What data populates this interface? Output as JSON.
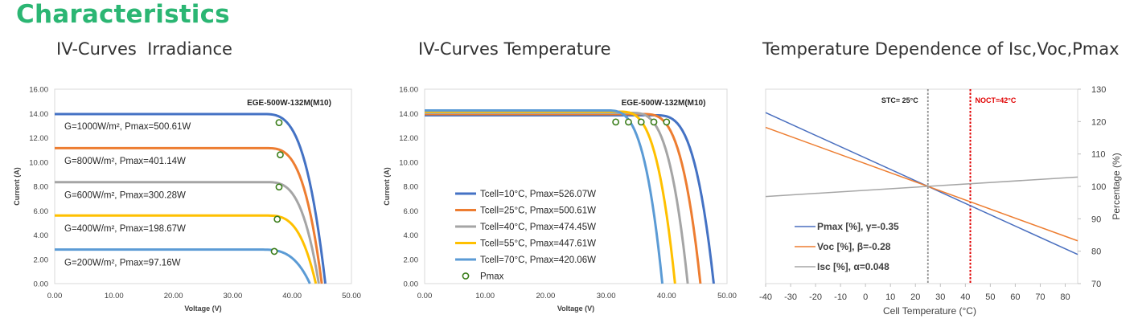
{
  "page": {
    "heading": "Characteristics",
    "subtitles": [
      "IV-Curves  Irradiance",
      "IV-Curves Temperature",
      "Temperature Dependence of Isc,Voc,Pmax"
    ]
  },
  "colors": {
    "heading": "#2bb673",
    "blue": "#4472c4",
    "orange": "#ed7d31",
    "gray": "#a5a5a5",
    "yellow": "#ffc000",
    "lightblue": "#5b9bd5",
    "marker": "#3a7d1a",
    "stc": "#8c8c8c",
    "noct": "#e00000",
    "line_blue": "#4a6fbf",
    "line_orange": "#ed7d31",
    "line_gray": "#a6a6a6"
  },
  "chart_data": [
    {
      "type": "line",
      "model_label": "EGE-500W-132M(M10)",
      "xlabel": "Voltage (V)",
      "ylabel": "Current (A)",
      "xlim": [
        0,
        50
      ],
      "ylim": [
        0,
        16
      ],
      "x_ticks": [
        "0.00",
        "10.00",
        "20.00",
        "30.00",
        "40.00",
        "50.00"
      ],
      "y_ticks": [
        "0.00",
        "2.00",
        "4.00",
        "6.00",
        "8.00",
        "10.00",
        "12.00",
        "14.00",
        "16.00"
      ],
      "series": [
        {
          "name": "G=1000W/m², Pmax=500.61W",
          "color_key": "blue",
          "isc": 13.95,
          "voc": 45.6,
          "knee": 35.0,
          "vmp": 37.8,
          "imp": 13.25
        },
        {
          "name": "G=800W/m², Pmax=401.14W",
          "color_key": "orange",
          "isc": 11.15,
          "voc": 45.0,
          "knee": 35.5,
          "vmp": 38.0,
          "imp": 10.6
        },
        {
          "name": "G=600W/m², Pmax=300.28W",
          "color_key": "gray",
          "isc": 8.35,
          "voc": 44.5,
          "knee": 35.5,
          "vmp": 37.8,
          "imp": 7.95
        },
        {
          "name": "G=400W/m², Pmax=198.67W",
          "color_key": "yellow",
          "isc": 5.6,
          "voc": 44.0,
          "knee": 35.5,
          "vmp": 37.5,
          "imp": 5.3
        },
        {
          "name": "G=200W/m², Pmax=97.16W",
          "color_key": "lightblue",
          "isc": 2.8,
          "voc": 43.0,
          "knee": 34.5,
          "vmp": 37.0,
          "imp": 2.65
        }
      ]
    },
    {
      "type": "line",
      "model_label": "EGE-500W-132M(M10)",
      "xlabel": "Voltage (V)",
      "ylabel": "Current (A)",
      "xlim": [
        0,
        50
      ],
      "ylim": [
        0,
        16
      ],
      "x_ticks": [
        "0.00",
        "10.00",
        "20.00",
        "30.00",
        "40.00",
        "50.00"
      ],
      "y_ticks": [
        "0.00",
        "2.00",
        "4.00",
        "6.00",
        "8.00",
        "10.00",
        "12.00",
        "14.00",
        "16.00"
      ],
      "legend_marker_label": "Pmax",
      "series": [
        {
          "name": "Tcell=10°C, Pmax=526.07W",
          "color_key": "blue",
          "isc": 13.85,
          "voc": 47.8,
          "knee": 38.0,
          "vmp": 40.0,
          "imp": 13.3
        },
        {
          "name": "Tcell=25°C, Pmax=500.61W",
          "color_key": "orange",
          "isc": 13.95,
          "voc": 45.6,
          "knee": 36.0,
          "vmp": 37.9,
          "imp": 13.3
        },
        {
          "name": "Tcell=40°C, Pmax=474.45W",
          "color_key": "gray",
          "isc": 14.05,
          "voc": 43.5,
          "knee": 34.0,
          "vmp": 35.8,
          "imp": 13.3
        },
        {
          "name": "Tcell=55°C, Pmax=447.61W",
          "color_key": "yellow",
          "isc": 14.15,
          "voc": 41.4,
          "knee": 32.0,
          "vmp": 33.7,
          "imp": 13.3
        },
        {
          "name": "Tcell=70°C, Pmax=420.06W",
          "color_key": "lightblue",
          "isc": 14.25,
          "voc": 39.3,
          "knee": 30.0,
          "vmp": 31.6,
          "imp": 13.3
        }
      ]
    },
    {
      "type": "line",
      "xlabel": "Cell Temperature (°C)",
      "ylabel": "Percentage (%)",
      "xlim": [
        -40,
        85
      ],
      "ylim": [
        70,
        130
      ],
      "x_ticks": [
        "-40",
        "-30",
        "-20",
        "-10",
        "0",
        "10",
        "20",
        "30",
        "40",
        "50",
        "60",
        "70",
        "80"
      ],
      "y_ticks": [
        "70",
        "80",
        "90",
        "100",
        "110",
        "120",
        "130"
      ],
      "vlines": [
        {
          "x": 25,
          "label": "STC= 25°C",
          "color_key": "stc"
        },
        {
          "x": 42,
          "label": "NOCT=42°C",
          "color_key": "noct"
        }
      ],
      "series": [
        {
          "name": "Pmax [%], γ=-0.35",
          "color_key": "line_blue",
          "x": [
            -40,
            85
          ],
          "y": [
            122.75,
            79.0
          ]
        },
        {
          "name": "Voc [%], β=-0.28",
          "color_key": "line_orange",
          "x": [
            -40,
            85
          ],
          "y": [
            118.2,
            83.2
          ]
        },
        {
          "name": "Isc [%], α=0.048",
          "color_key": "line_gray",
          "x": [
            -40,
            85
          ],
          "y": [
            96.88,
            102.88
          ]
        }
      ]
    }
  ]
}
